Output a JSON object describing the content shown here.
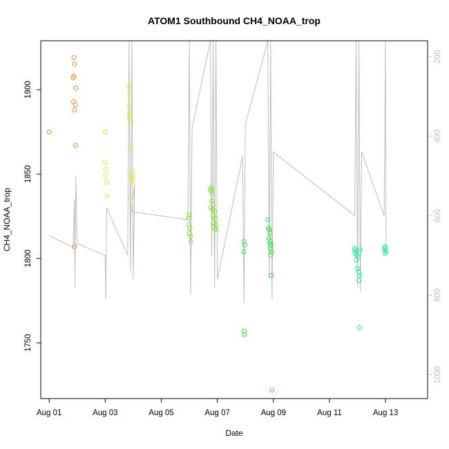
{
  "chart_data": {
    "type": "scatter",
    "title": "ATOM1 Southbound CH4_NOAA_trop",
    "xlabel": "Date",
    "ylabel": "CH4_NOAA_trop",
    "x_unit": "days from Aug 01",
    "xlim": [
      -0.3,
      13.5
    ],
    "ylim": [
      1717,
      1929
    ],
    "x_ticks": [
      {
        "value": 0,
        "label": "Aug 01"
      },
      {
        "value": 2,
        "label": "Aug 03"
      },
      {
        "value": 4,
        "label": "Aug 05"
      },
      {
        "value": 6,
        "label": "Aug 07"
      },
      {
        "value": 8,
        "label": "Aug 09"
      },
      {
        "value": 10,
        "label": "Aug 11"
      },
      {
        "value": 12,
        "label": "Aug 13"
      }
    ],
    "y_ticks": [
      1750,
      1800,
      1850,
      1900
    ],
    "right_axis": {
      "label": "",
      "lim": [
        1060,
        160
      ],
      "ticks": [
        200,
        400,
        600,
        800,
        1000
      ],
      "color": "#bdbdbd"
    },
    "grid": false,
    "legend": "none",
    "points": [
      {
        "x": 0.0,
        "y": 1875,
        "c": "#f28c28"
      },
      {
        "x": 0.88,
        "y": 1919,
        "c": "#f28c28"
      },
      {
        "x": 0.9,
        "y": 1915,
        "c": "#f28c28"
      },
      {
        "x": 0.88,
        "y": 1908,
        "c": "#f28c28"
      },
      {
        "x": 0.86,
        "y": 1907,
        "c": "#f28c28"
      },
      {
        "x": 0.95,
        "y": 1901,
        "c": "#f28c28"
      },
      {
        "x": 0.87,
        "y": 1893,
        "c": "#f28c28"
      },
      {
        "x": 0.94,
        "y": 1891,
        "c": "#f28c28"
      },
      {
        "x": 0.9,
        "y": 1888,
        "c": "#f28c28"
      },
      {
        "x": 0.94,
        "y": 1867,
        "c": "#f28c28"
      },
      {
        "x": 0.9,
        "y": 1807,
        "c": "#f28c28"
      },
      {
        "x": 2.0,
        "y": 1875,
        "c": "#e6e62e"
      },
      {
        "x": 2.0,
        "y": 1857,
        "c": "#e6e62e"
      },
      {
        "x": 2.03,
        "y": 1853,
        "c": "#e6e62e"
      },
      {
        "x": 2.0,
        "y": 1849,
        "c": "#e6e62e"
      },
      {
        "x": 2.05,
        "y": 1845,
        "c": "#e6e62e"
      },
      {
        "x": 2.07,
        "y": 1837,
        "c": "#e6e62e"
      },
      {
        "x": 2.84,
        "y": 1902,
        "c": "#e6e62e"
      },
      {
        "x": 2.87,
        "y": 1899,
        "c": "#e6e62e"
      },
      {
        "x": 2.9,
        "y": 1895,
        "c": "#e6e62e"
      },
      {
        "x": 2.85,
        "y": 1890,
        "c": "#e6e62e"
      },
      {
        "x": 2.88,
        "y": 1886,
        "c": "#e6e62e"
      },
      {
        "x": 2.86,
        "y": 1884,
        "c": "#e6e62e"
      },
      {
        "x": 2.92,
        "y": 1881,
        "c": "#e6e62e"
      },
      {
        "x": 2.89,
        "y": 1866,
        "c": "#e6e62e"
      },
      {
        "x": 2.95,
        "y": 1851,
        "c": "#e6e62e"
      },
      {
        "x": 2.97,
        "y": 1849,
        "c": "#e6e62e"
      },
      {
        "x": 2.96,
        "y": 1847,
        "c": "#e6e62e"
      },
      {
        "x": 2.99,
        "y": 1846,
        "c": "#e6e62e"
      },
      {
        "x": 2.9,
        "y": 1836,
        "c": "#e6e62e"
      },
      {
        "x": 5.0,
        "y": 1826,
        "c": "#7de02a"
      },
      {
        "x": 4.97,
        "y": 1824,
        "c": "#7de02a"
      },
      {
        "x": 4.98,
        "y": 1820,
        "c": "#7de02a"
      },
      {
        "x": 5.02,
        "y": 1818,
        "c": "#7de02a"
      },
      {
        "x": 5.0,
        "y": 1815,
        "c": "#7de02a"
      },
      {
        "x": 5.04,
        "y": 1813,
        "c": "#7de02a"
      },
      {
        "x": 5.05,
        "y": 1810,
        "c": "#7de02a"
      },
      {
        "x": 5.8,
        "y": 1842,
        "c": "#7de02a"
      },
      {
        "x": 5.75,
        "y": 1841,
        "c": "#7de02a"
      },
      {
        "x": 5.78,
        "y": 1840,
        "c": "#7de02a"
      },
      {
        "x": 5.82,
        "y": 1838,
        "c": "#7de02a"
      },
      {
        "x": 5.8,
        "y": 1834,
        "c": "#7de02a"
      },
      {
        "x": 5.85,
        "y": 1832,
        "c": "#7de02a"
      },
      {
        "x": 5.77,
        "y": 1830,
        "c": "#7de02a"
      },
      {
        "x": 5.83,
        "y": 1829,
        "c": "#7de02a"
      },
      {
        "x": 5.9,
        "y": 1828,
        "c": "#7de02a"
      },
      {
        "x": 5.86,
        "y": 1825,
        "c": "#7de02a"
      },
      {
        "x": 5.92,
        "y": 1824,
        "c": "#7de02a"
      },
      {
        "x": 5.88,
        "y": 1821,
        "c": "#7de02a"
      },
      {
        "x": 5.94,
        "y": 1820,
        "c": "#7de02a"
      },
      {
        "x": 5.9,
        "y": 1818,
        "c": "#7de02a"
      },
      {
        "x": 5.95,
        "y": 1817,
        "c": "#7de02a"
      },
      {
        "x": 6.95,
        "y": 1810,
        "c": "#2ee63a"
      },
      {
        "x": 6.98,
        "y": 1808,
        "c": "#2ee63a"
      },
      {
        "x": 6.94,
        "y": 1804,
        "c": "#2ee63a"
      },
      {
        "x": 6.96,
        "y": 1757,
        "c": "#2ee63a"
      },
      {
        "x": 6.97,
        "y": 1755,
        "c": "#2ee63a"
      },
      {
        "x": 7.8,
        "y": 1823,
        "c": "#2ee63a"
      },
      {
        "x": 7.82,
        "y": 1818,
        "c": "#2ee63a"
      },
      {
        "x": 7.85,
        "y": 1817,
        "c": "#2ee63a"
      },
      {
        "x": 7.88,
        "y": 1815,
        "c": "#2ee63a"
      },
      {
        "x": 7.83,
        "y": 1812,
        "c": "#2ee63a"
      },
      {
        "x": 7.9,
        "y": 1810,
        "c": "#2ee63a"
      },
      {
        "x": 7.86,
        "y": 1809,
        "c": "#2ee63a"
      },
      {
        "x": 7.92,
        "y": 1808,
        "c": "#2ee63a"
      },
      {
        "x": 7.89,
        "y": 1806,
        "c": "#2ee63a"
      },
      {
        "x": 7.94,
        "y": 1804,
        "c": "#2ee63a"
      },
      {
        "x": 7.9,
        "y": 1802,
        "c": "#2ee63a"
      },
      {
        "x": 7.93,
        "y": 1790,
        "c": "#2ee63a"
      },
      {
        "x": 7.95,
        "y": 1722,
        "c": "#2ee63a"
      },
      {
        "x": 10.9,
        "y": 1806,
        "c": "#1ee8a8"
      },
      {
        "x": 10.92,
        "y": 1805,
        "c": "#1ee8a8"
      },
      {
        "x": 10.95,
        "y": 1804,
        "c": "#1ee8a8"
      },
      {
        "x": 10.91,
        "y": 1803,
        "c": "#1ee8a8"
      },
      {
        "x": 10.98,
        "y": 1802,
        "c": "#1ee8a8"
      },
      {
        "x": 11.02,
        "y": 1801,
        "c": "#1ee8a8"
      },
      {
        "x": 10.96,
        "y": 1799,
        "c": "#1ee8a8"
      },
      {
        "x": 11.0,
        "y": 1794,
        "c": "#1ee8a8"
      },
      {
        "x": 11.04,
        "y": 1792,
        "c": "#1ee8a8"
      },
      {
        "x": 11.08,
        "y": 1790,
        "c": "#1ee8a8"
      },
      {
        "x": 11.05,
        "y": 1787,
        "c": "#1ee8a8"
      },
      {
        "x": 11.1,
        "y": 1805,
        "c": "#1ee8a8"
      },
      {
        "x": 11.07,
        "y": 1759,
        "c": "#1ee8a8"
      },
      {
        "x": 11.98,
        "y": 1807,
        "c": "#1ee8a8"
      },
      {
        "x": 12.0,
        "y": 1806,
        "c": "#1ee8a8"
      },
      {
        "x": 11.96,
        "y": 1805,
        "c": "#1ee8a8"
      },
      {
        "x": 12.02,
        "y": 1804,
        "c": "#1ee8a8"
      },
      {
        "x": 11.99,
        "y": 1803,
        "c": "#1ee8a8"
      }
    ],
    "pressure_path": [
      [
        0.0,
        650
      ],
      [
        0.85,
        680
      ],
      [
        0.9,
        560
      ],
      [
        0.92,
        780
      ],
      [
        0.95,
        500
      ],
      [
        1.0,
        670
      ],
      [
        2.0,
        700
      ],
      [
        2.02,
        810
      ],
      [
        2.05,
        580
      ],
      [
        2.8,
        700
      ],
      [
        2.85,
        160
      ],
      [
        2.9,
        740
      ],
      [
        2.95,
        160
      ],
      [
        3.0,
        760
      ],
      [
        3.05,
        520
      ],
      [
        2.95,
        590
      ],
      [
        4.95,
        610
      ],
      [
        5.0,
        160
      ],
      [
        5.05,
        800
      ],
      [
        5.1,
        380
      ],
      [
        5.75,
        160
      ],
      [
        5.8,
        700
      ],
      [
        5.85,
        160
      ],
      [
        5.9,
        780
      ],
      [
        5.95,
        160
      ],
      [
        6.0,
        760
      ],
      [
        6.9,
        450
      ],
      [
        6.95,
        820
      ],
      [
        7.0,
        370
      ],
      [
        7.8,
        160
      ],
      [
        7.85,
        760
      ],
      [
        7.9,
        160
      ],
      [
        7.95,
        810
      ],
      [
        8.0,
        440
      ],
      [
        10.9,
        600
      ],
      [
        10.95,
        160
      ],
      [
        11.0,
        780
      ],
      [
        11.05,
        160
      ],
      [
        11.1,
        790
      ],
      [
        11.15,
        440
      ],
      [
        11.95,
        600
      ],
      [
        12.0,
        160
      ],
      [
        12.02,
        680
      ]
    ]
  }
}
